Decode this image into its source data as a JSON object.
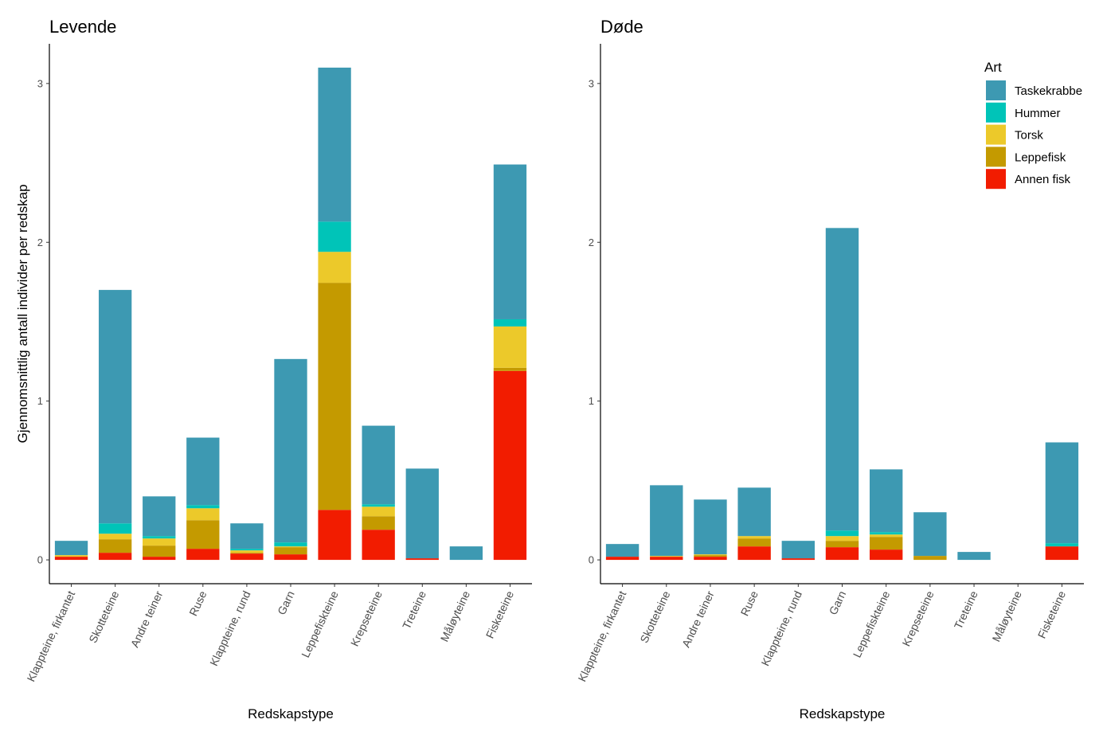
{
  "chart_data": [
    {
      "type": "bar",
      "stacked": true,
      "title": "Levende",
      "xlabel": "Redskapstype",
      "ylabel": "Gjennomsnittlig antall individer per redskap",
      "ylim": [
        -0.15,
        3.25
      ],
      "yticks": [
        0,
        1,
        2,
        3
      ],
      "grid": false,
      "categories": [
        "Klappteine, firkantet",
        "Skotteteine",
        "Andre teiner",
        "Ruse",
        "Klappteine, rund",
        "Garn",
        "Leppefiskteine",
        "Krepseteine",
        "Treteine",
        "Måløyteine",
        "Fisketeine"
      ],
      "series": [
        {
          "name": "Annen fisk",
          "values": [
            0.02,
            0.045,
            0.02,
            0.07,
            0.04,
            0.035,
            0.315,
            0.19,
            0.01,
            0,
            1.19
          ]
        },
        {
          "name": "Leppefisk",
          "values": [
            0.0,
            0.085,
            0.07,
            0.18,
            0.005,
            0.045,
            1.43,
            0.085,
            0,
            0,
            0.02
          ]
        },
        {
          "name": "Torsk",
          "values": [
            0.01,
            0.035,
            0.045,
            0.075,
            0.015,
            0.005,
            0.195,
            0.06,
            0,
            0,
            0.26
          ]
        },
        {
          "name": "Hummer",
          "values": [
            0,
            0.065,
            0.015,
            0.02,
            0.01,
            0.025,
            0.19,
            0.015,
            0,
            0,
            0.045
          ]
        },
        {
          "name": "Taskekrabbe",
          "values": [
            0.09,
            1.47,
            0.25,
            0.425,
            0.16,
            1.155,
            0.97,
            0.495,
            0.565,
            0.085,
            0.975
          ]
        }
      ]
    },
    {
      "type": "bar",
      "stacked": true,
      "title": "Døde",
      "xlabel": "Redskapstype",
      "ylabel": "",
      "ylim": [
        -0.15,
        3.25
      ],
      "yticks": [
        0,
        1,
        2,
        3
      ],
      "grid": false,
      "categories": [
        "Klappteine, firkantet",
        "Skotteteine",
        "Andre teiner",
        "Ruse",
        "Klappteine, rund",
        "Garn",
        "Leppefiskteine",
        "Krepseteine",
        "Treteine",
        "Måløyteine",
        "Fisketeine"
      ],
      "series": [
        {
          "name": "Annen fisk",
          "values": [
            0.02,
            0.02,
            0.02,
            0.085,
            0.01,
            0.08,
            0.065,
            0,
            0,
            0,
            0.085
          ]
        },
        {
          "name": "Leppefisk",
          "values": [
            0,
            0,
            0.01,
            0.05,
            0,
            0.04,
            0.08,
            0.025,
            0,
            0,
            0
          ]
        },
        {
          "name": "Torsk",
          "values": [
            0,
            0.005,
            0.005,
            0.015,
            0,
            0.03,
            0.015,
            0,
            0,
            0,
            0
          ]
        },
        {
          "name": "Hummer",
          "values": [
            0,
            0,
            0,
            0,
            0,
            0.035,
            0.015,
            0,
            0,
            0,
            0.02
          ]
        },
        {
          "name": "Taskekrabbe",
          "values": [
            0.08,
            0.445,
            0.345,
            0.305,
            0.11,
            1.905,
            0.395,
            0.275,
            0.05,
            0,
            0.635
          ]
        }
      ]
    }
  ],
  "legend": {
    "title": "Art",
    "placement": "top-right",
    "items": [
      {
        "name": "Taskekrabbe",
        "color": "#3d99b2"
      },
      {
        "name": "Hummer",
        "color": "#00c4b8"
      },
      {
        "name": "Torsk",
        "color": "#ecc92a"
      },
      {
        "name": "Leppefisk",
        "color": "#c49a00"
      },
      {
        "name": "Annen fisk",
        "color": "#f21c00"
      }
    ]
  }
}
